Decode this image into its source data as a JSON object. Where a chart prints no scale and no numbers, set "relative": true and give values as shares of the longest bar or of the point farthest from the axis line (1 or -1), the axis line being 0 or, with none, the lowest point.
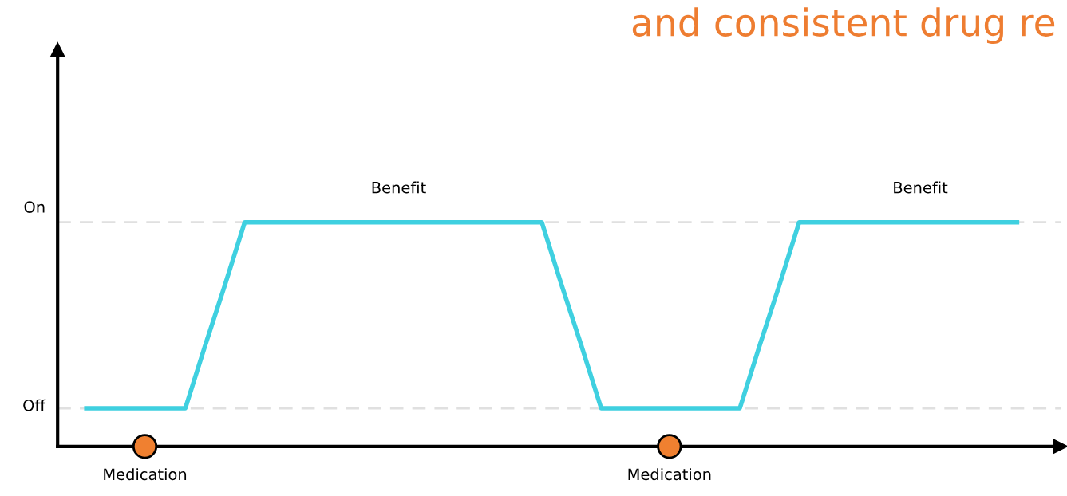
{
  "chart_data": {
    "type": "line",
    "title": "and consistent drug re",
    "categories": [
      null,
      null,
      null,
      null,
      null,
      null,
      null,
      null,
      null,
      null,
      null,
      null,
      null,
      null,
      null,
      null,
      null,
      null,
      null,
      null,
      null,
      null,
      null,
      null,
      null,
      null,
      null,
      null,
      null,
      null,
      null,
      null,
      null,
      null,
      null,
      null,
      null,
      null,
      null,
      null,
      null,
      null,
      null,
      null,
      null,
      null,
      null,
      null
    ],
    "series": [
      {
        "color": "#3fd0e0",
        "values": [
          0.17,
          0.17,
          0.17,
          0.17,
          0.17,
          0.17,
          0.45,
          0.72,
          1,
          1,
          1,
          1,
          1,
          1,
          1,
          1,
          1,
          1,
          1,
          1,
          1,
          1,
          1,
          1,
          0.72,
          0.45,
          0.17,
          0.17,
          0.17,
          0.17,
          0.17,
          0.17,
          0.17,
          0.17,
          0.45,
          0.72,
          1,
          1,
          1,
          1,
          1,
          1,
          1,
          1,
          1,
          1,
          1,
          1
        ]
      }
    ],
    "relative": true,
    "legend": false,
    "line_style": "solid",
    "ref_lines": [
      {
        "axis": "y",
        "value": 1,
        "color": "#e0e0e0",
        "line_style": "dashed"
      },
      {
        "axis": "y",
        "value": 0.17,
        "color": "#e0e0e0",
        "line_style": "dashed"
      }
    ],
    "annotations": [
      "Benefit",
      "Benefit",
      "Medication",
      "Medication",
      "On",
      "Off"
    ]
  }
}
